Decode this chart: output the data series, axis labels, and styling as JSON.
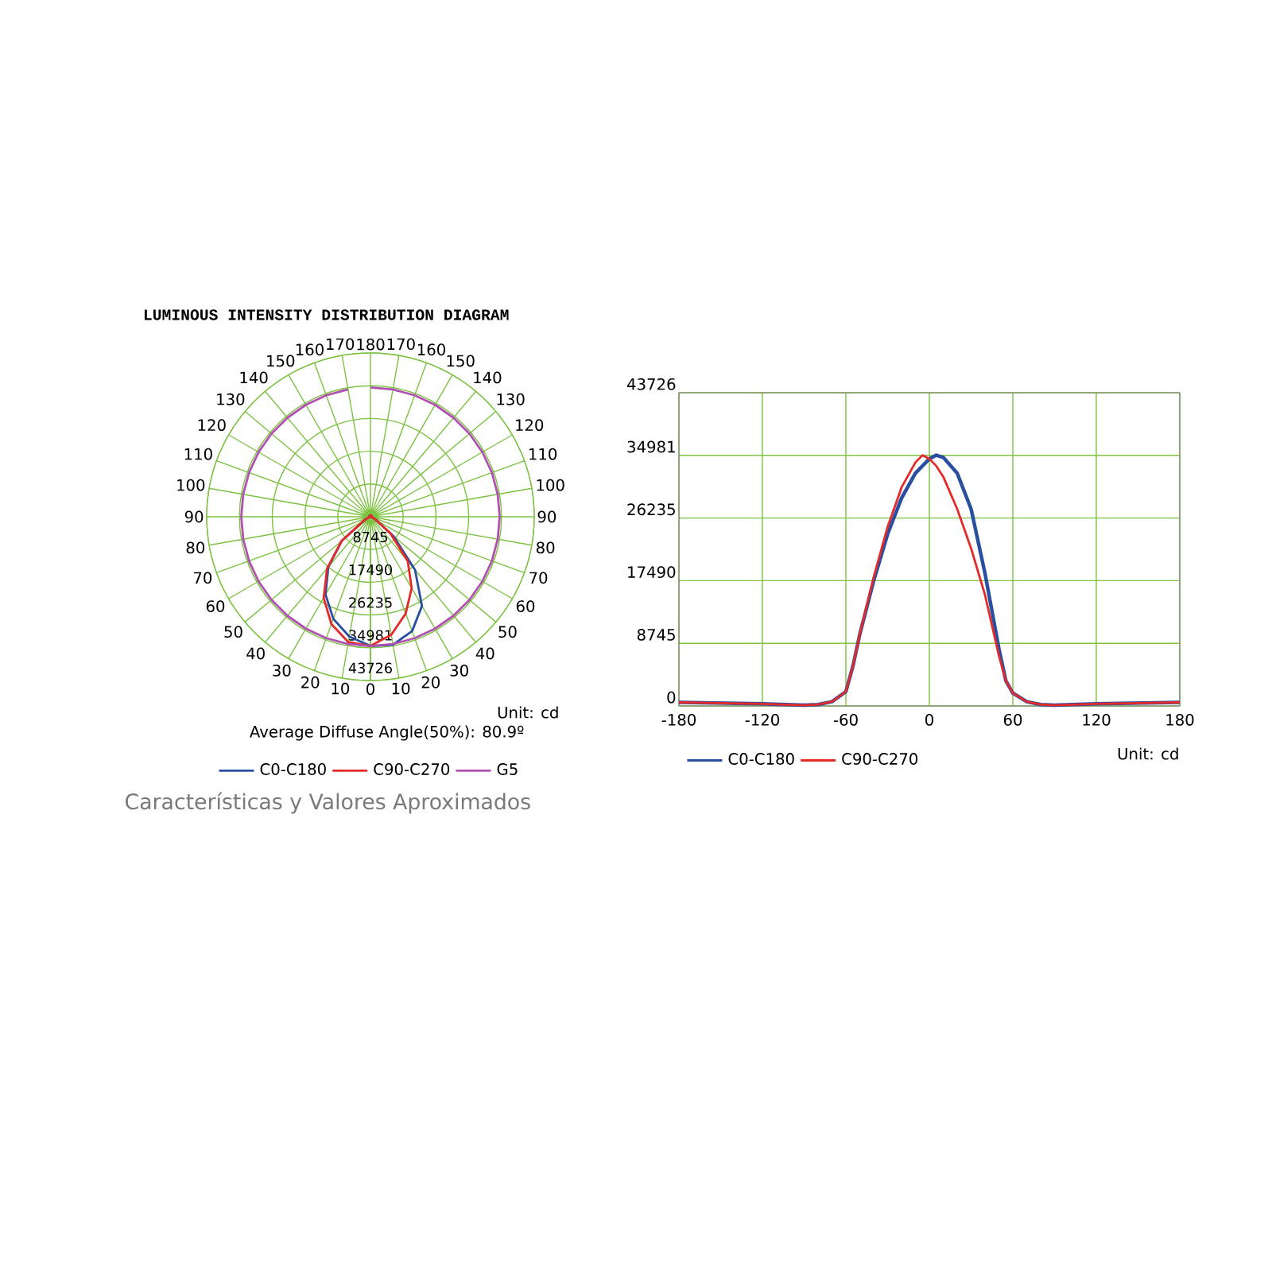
{
  "chart_data": [
    {
      "type": "radar",
      "title": "LUMINOUS INTENSITY DISTRIBUTION DIAGRAM",
      "categories": [
        "180",
        "170",
        "160",
        "150",
        "140",
        "130",
        "120",
        "110",
        "100",
        "90",
        "80",
        "70",
        "60",
        "50",
        "40",
        "30",
        "20",
        "10",
        "0",
        "10",
        "20",
        "30",
        "40",
        "50",
        "60",
        "70",
        "80",
        "90",
        "100",
        "110",
        "120",
        "130",
        "140",
        "150",
        "160",
        "170"
      ],
      "series": [
        {
          "name": "C0-C180",
          "color": "#2a4fa0",
          "values": [
            500,
            450,
            450,
            400,
            400,
            350,
            300,
            250,
            150,
            100,
            200,
            600,
            1800,
            8000,
            18500,
            27500,
            32500,
            34700,
            34500,
            32500,
            29000,
            24000,
            17500,
            10000,
            2000,
            600,
            200,
            100,
            150,
            250,
            300,
            350,
            400,
            400,
            450,
            450
          ]
        },
        {
          "name": "C90-C270",
          "color": "#e52a2a",
          "values": [
            500,
            450,
            450,
            400,
            400,
            350,
            300,
            250,
            150,
            100,
            200,
            600,
            1800,
            7000,
            15500,
            22000,
            27500,
            32000,
            34500,
            34000,
            30500,
            25000,
            18000,
            10000,
            2000,
            600,
            200,
            100,
            150,
            250,
            300,
            350,
            400,
            400,
            450,
            450
          ]
        },
        {
          "name": "G5",
          "color": "#b050b0",
          "values": [
            34500,
            34500,
            34500,
            34500,
            34500,
            34500,
            34500,
            34500,
            34500,
            34500,
            34500,
            34500,
            34500,
            34500,
            34500,
            34500,
            34500,
            34500,
            34500,
            34500,
            34500,
            34500,
            34500,
            34500,
            34500,
            34500,
            34500,
            34500,
            34500,
            34500,
            34500,
            34500,
            34500,
            34500,
            34500,
            34500
          ]
        }
      ],
      "ylim": [
        0,
        43726
      ],
      "yticks": [
        8745,
        17490,
        26235,
        34981,
        43726
      ],
      "grid": true,
      "legend": "bottom",
      "marker": "none",
      "line_style": "solid",
      "annotations": [
        "Unit: cd",
        "Average Diffuse Angle(50%): 80.9º",
        "Características y Valores Aproximados"
      ]
    },
    {
      "type": "line",
      "x": [
        -180,
        -150,
        -120,
        -90,
        -80,
        -70,
        -60,
        -55,
        -50,
        -40,
        -30,
        -20,
        -10,
        -5,
        0,
        5,
        10,
        20,
        30,
        40,
        50,
        55,
        60,
        70,
        80,
        90,
        120,
        150,
        180
      ],
      "series": [
        {
          "name": "C0-C180",
          "color": "#2a4fa0",
          "values": [
            500,
            400,
            300,
            100,
            200,
            600,
            2000,
            5500,
            10000,
            17500,
            24000,
            29000,
            32500,
            33500,
            34500,
            35000,
            34700,
            32500,
            27500,
            18500,
            8000,
            3500,
            1800,
            600,
            200,
            100,
            300,
            400,
            500
          ]
        },
        {
          "name": "C90-C270",
          "color": "#e52a2a",
          "values": [
            500,
            400,
            300,
            100,
            200,
            600,
            2000,
            5500,
            10000,
            18000,
            25000,
            30500,
            34000,
            35000,
            34500,
            33500,
            32000,
            27500,
            22000,
            15500,
            7000,
            3500,
            1800,
            600,
            200,
            100,
            300,
            400,
            500
          ]
        }
      ],
      "xlim": [
        -180,
        180
      ],
      "xticks": [
        -180,
        -120,
        -60,
        0,
        60,
        120,
        180
      ],
      "ylim": [
        0,
        43726
      ],
      "yticks": [
        0,
        8745,
        17490,
        26235,
        34981,
        43726
      ],
      "grid": true,
      "legend": "bottom",
      "marker": "none",
      "line_style": "solid",
      "annotations": [
        "Unit: cd"
      ]
    }
  ]
}
